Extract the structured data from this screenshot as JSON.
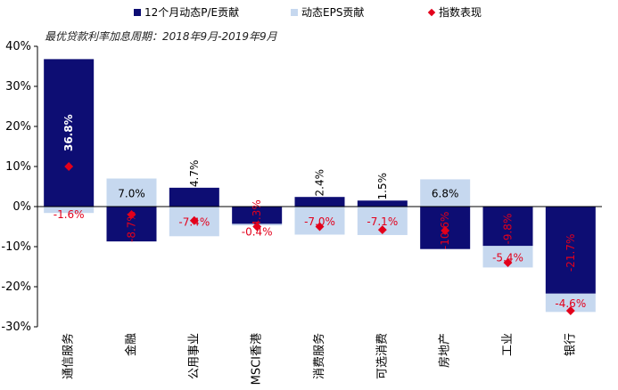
{
  "chart_data": {
    "type": "bar",
    "subtitle": "最优贷款利率加息周期：2018年9月-2019年9月",
    "categories": [
      "通信服务",
      "金融",
      "公用事业",
      "MSCI香港",
      "消费服务",
      "可选消费",
      "房地产",
      "工业",
      "银行"
    ],
    "series": [
      {
        "name": "12个月动态P/E贡献",
        "color": "#0d0d73",
        "values": [
          36.8,
          -8.7,
          4.7,
          -4.3,
          2.4,
          1.5,
          -10.6,
          -9.8,
          -21.7
        ],
        "labels": [
          "36.8%",
          "-8.7%",
          "4.7%",
          "-4.3%",
          "2.4%",
          "1.5%",
          "-10.6%",
          "-9.8%",
          "-21.7%"
        ]
      },
      {
        "name": "动态EPS贡献",
        "color": "#c6d8ef",
        "values": [
          -1.6,
          7.0,
          -7.4,
          -0.4,
          -7.0,
          -7.1,
          6.8,
          -5.4,
          -4.6
        ],
        "labels": [
          "-1.6%",
          "7.0%",
          "-7.4%",
          "-0.4%",
          "-7.0%",
          "-7.1%",
          "6.8%",
          "-5.4%",
          "-4.6%"
        ]
      },
      {
        "name": "指数表现",
        "type": "scatter",
        "color": "#e3001b",
        "values": [
          10,
          -2,
          -3.5,
          -5,
          -5,
          -5.8,
          -6,
          -14,
          -26
        ]
      }
    ],
    "y_ticks": [
      "40%",
      "30%",
      "20%",
      "10%",
      "0%",
      "-10%",
      "-20%",
      "-30%"
    ],
    "ylim": [
      -30,
      40
    ],
    "grid": false,
    "legend_position": "top"
  }
}
